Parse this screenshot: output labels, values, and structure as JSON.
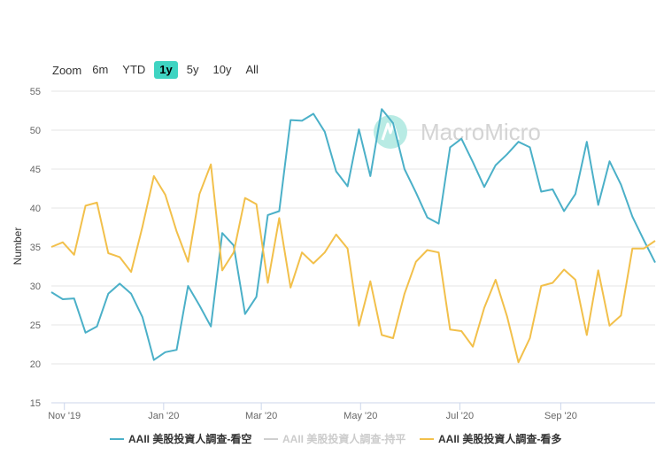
{
  "zoom": {
    "label": "Zoom",
    "buttons": [
      "6m",
      "YTD",
      "1y",
      "5y",
      "10y",
      "All"
    ],
    "active": "1y"
  },
  "watermark": {
    "text": "MacroMicro"
  },
  "colors": {
    "bearish": "#4bb0c8",
    "neutral": "#cfcfcf",
    "bullish": "#f2c04b",
    "zoom_active": "#3fd4c2"
  },
  "chart_data": {
    "type": "line",
    "ylabel": "Number",
    "ylim": [
      15,
      55
    ],
    "yticks": [
      15,
      20,
      25,
      30,
      35,
      40,
      45,
      50,
      55
    ],
    "x_start": "2019-10-24",
    "x_step_days": 7,
    "x_ticks": [
      {
        "label": "Nov '19",
        "date": "2019-11-01"
      },
      {
        "label": "Jan '20",
        "date": "2020-01-01"
      },
      {
        "label": "Mar '20",
        "date": "2020-03-01"
      },
      {
        "label": "May '20",
        "date": "2020-05-01"
      },
      {
        "label": "Jul '20",
        "date": "2020-07-01"
      },
      {
        "label": "Sep '20",
        "date": "2020-09-01"
      }
    ],
    "grid": true,
    "legend": "bottom",
    "series": [
      {
        "name": "AAII 美股投資人調查-看空",
        "visible": true,
        "values": [
          29.2,
          28.3,
          28.4,
          24.0,
          24.8,
          29.0,
          30.3,
          29.0,
          26.0,
          20.5,
          21.5,
          21.8,
          30.0,
          27.5,
          24.8,
          36.8,
          35.2,
          26.4,
          28.6,
          39.1,
          39.6,
          51.3,
          51.2,
          52.1,
          49.8,
          44.7,
          42.8,
          50.1,
          44.1,
          52.7,
          50.9,
          45.0,
          42.0,
          38.8,
          38.0,
          47.8,
          48.9,
          45.9,
          42.7,
          45.5,
          46.9,
          48.5,
          47.8,
          42.1,
          42.4,
          39.6,
          41.8,
          48.5,
          40.4,
          46.0,
          43.0,
          38.9,
          35.9,
          33.0
        ]
      },
      {
        "name": "AAII 美股投資人調查-持平",
        "visible": false,
        "values": []
      },
      {
        "name": "AAII 美股投資人調查-看多",
        "visible": true,
        "values": [
          35.0,
          35.6,
          34.0,
          40.3,
          40.7,
          34.2,
          33.7,
          31.8,
          37.6,
          44.1,
          41.7,
          37.0,
          33.1,
          41.8,
          45.6,
          32.0,
          34.3,
          41.3,
          40.5,
          30.4,
          38.7,
          29.8,
          34.3,
          32.9,
          34.3,
          36.6,
          34.8,
          24.9,
          30.6,
          23.7,
          23.3,
          29.0,
          33.1,
          34.6,
          34.3,
          24.4,
          24.2,
          22.2,
          27.2,
          30.8,
          26.1,
          20.2,
          23.3,
          30.0,
          30.4,
          32.1,
          30.8,
          23.7,
          32.0,
          24.9,
          26.2,
          34.8,
          34.8,
          35.8
        ]
      }
    ]
  }
}
